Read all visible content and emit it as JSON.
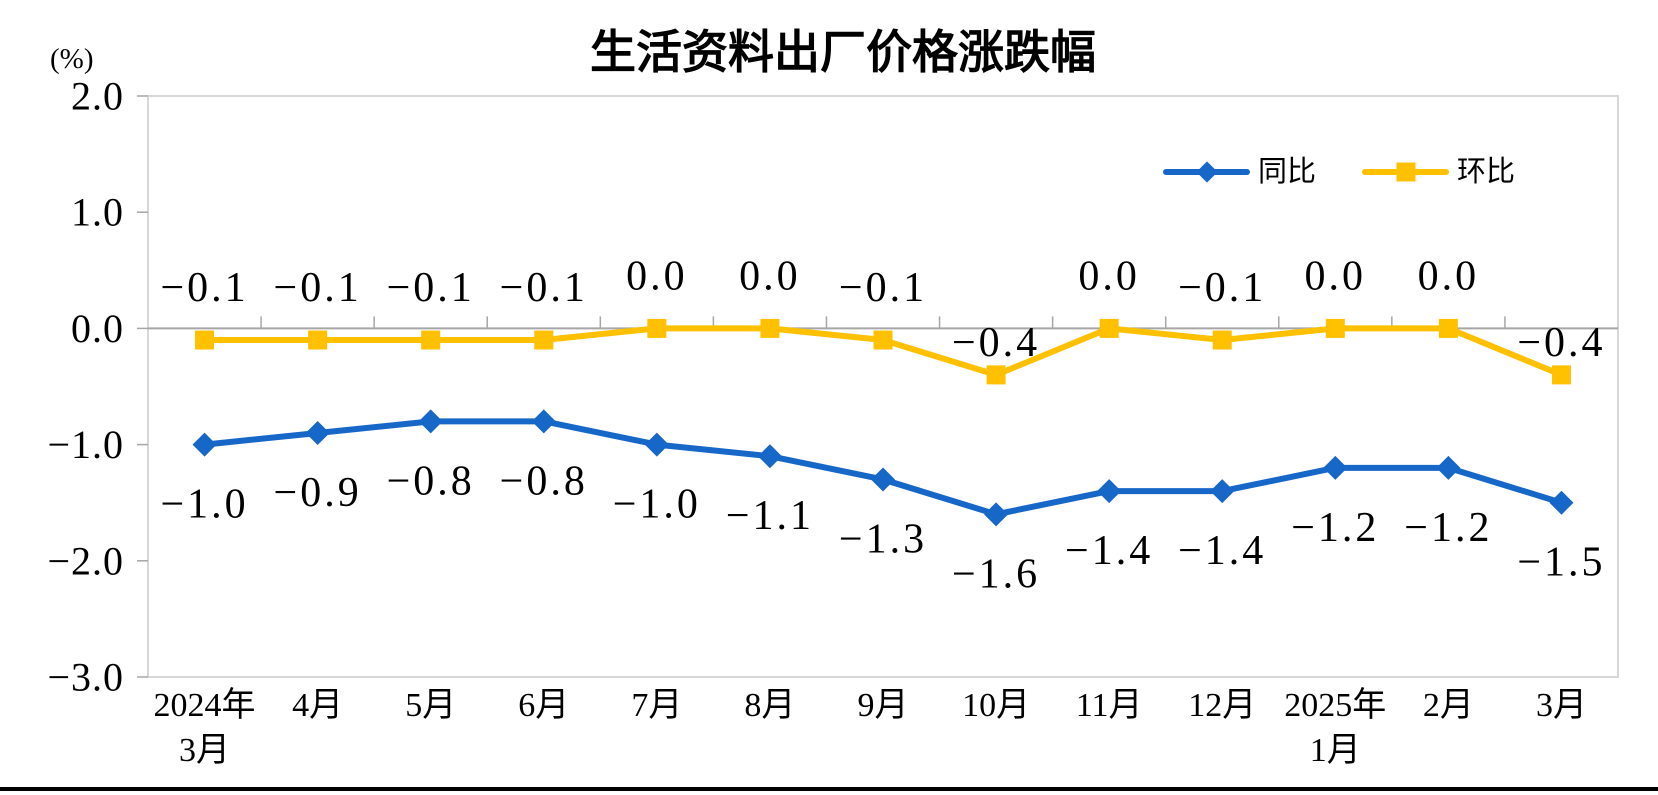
{
  "title": "生活资料出厂价格涨跌幅",
  "unit_label": "(%)",
  "colors": {
    "yoy_blue": "#1767C8",
    "mom_yellow": "#FFC000",
    "plot_border": "#D7D7D7",
    "zero_line": "#A6A6A6",
    "tick": "#A6A6A6",
    "text": "#000000",
    "bottom_rule": "#000000",
    "background": "#FFFFFF"
  },
  "chart_data": {
    "type": "line",
    "title": "生活资料出厂价格涨跌幅",
    "ylabel": "(%)",
    "xlabel": "",
    "grid": "zero-line-only",
    "legend_position": "top-right-inside",
    "categories": [
      "2024年\n3月",
      "4月",
      "5月",
      "6月",
      "7月",
      "8月",
      "9月",
      "10月",
      "11月",
      "12月",
      "2025年\n1月",
      "2月",
      "3月"
    ],
    "y_axis": {
      "min": -3.0,
      "max": 2.0,
      "step": 1.0,
      "tick_labels": [
        "2.0",
        "1.0",
        "0.0",
        "-1.0",
        "-2.0",
        "-3.0"
      ]
    },
    "series": [
      {
        "name": "同比",
        "marker": "diamond",
        "color": "#1767C8",
        "label_position": "below",
        "values": [
          -1.0,
          -0.9,
          -0.8,
          -0.8,
          -1.0,
          -1.1,
          -1.3,
          -1.6,
          -1.4,
          -1.4,
          -1.2,
          -1.2,
          -1.5
        ],
        "labels": [
          "-1.0",
          "-0.9",
          "-0.8",
          "-0.8",
          "-1.0",
          "-1.1",
          "-1.3",
          "-1.6",
          "-1.4",
          "-1.4",
          "-1.2",
          "-1.2",
          "-1.5"
        ]
      },
      {
        "name": "环比",
        "marker": "square",
        "color": "#FFC000",
        "label_position": "above",
        "values": [
          -0.1,
          -0.1,
          -0.1,
          -0.1,
          0.0,
          0.0,
          -0.1,
          -0.4,
          0.0,
          -0.1,
          0.0,
          0.0,
          -0.4
        ],
        "labels": [
          "-0.1",
          "-0.1",
          "-0.1",
          "-0.1",
          "0.0",
          "0.0",
          "-0.1",
          "-0.4",
          "0.0",
          "-0.1",
          "0.0",
          "0.0",
          "-0.4"
        ]
      }
    ]
  }
}
